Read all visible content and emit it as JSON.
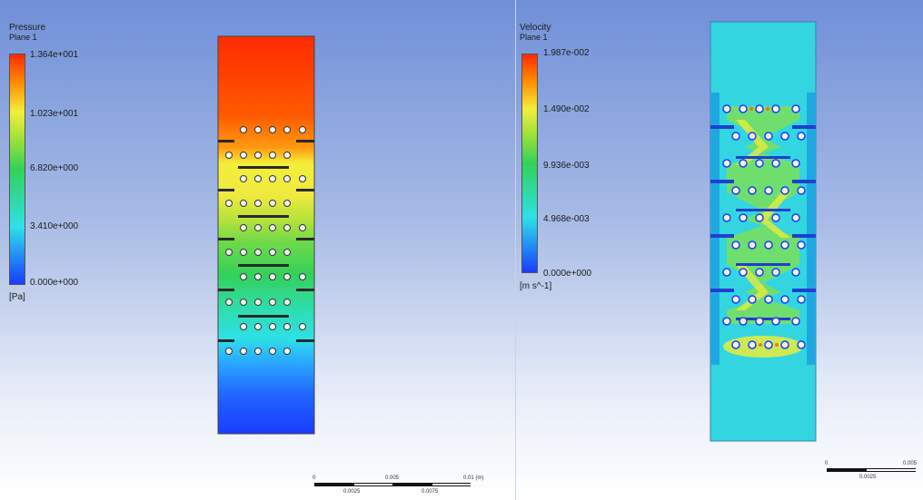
{
  "left_panel": {
    "legend": {
      "title": "Pressure",
      "plane": "Plane 1",
      "labels": [
        "1.364e+001",
        "1.023e+001",
        "6.820e+000",
        "3.410e+000",
        "0.000e+000"
      ],
      "unit": "[Pa]"
    },
    "scale": {
      "ticks": [
        "0",
        "0.005",
        "0.01 (m)"
      ],
      "sub_ticks": [
        "0.0025",
        "0.0075"
      ]
    }
  },
  "right_panel": {
    "legend": {
      "title": "Velocity",
      "plane": "Plane 1",
      "labels": [
        "1.987e-002",
        "1.490e-002",
        "9.936e-003",
        "4.968e-003",
        "0.000e+000"
      ],
      "unit": "[m s^-1]"
    },
    "scale": {
      "ticks": [
        "0",
        "0.005"
      ],
      "sub_ticks": [
        "0.0025"
      ]
    }
  },
  "colors": {
    "red": "#ff2a00",
    "orange": "#ff8a00",
    "yellow": "#f4ee3a",
    "green": "#33d15a",
    "cyan": "#2fe0e8",
    "blue": "#1a3cff",
    "velocity_field": "#33d6e0"
  }
}
